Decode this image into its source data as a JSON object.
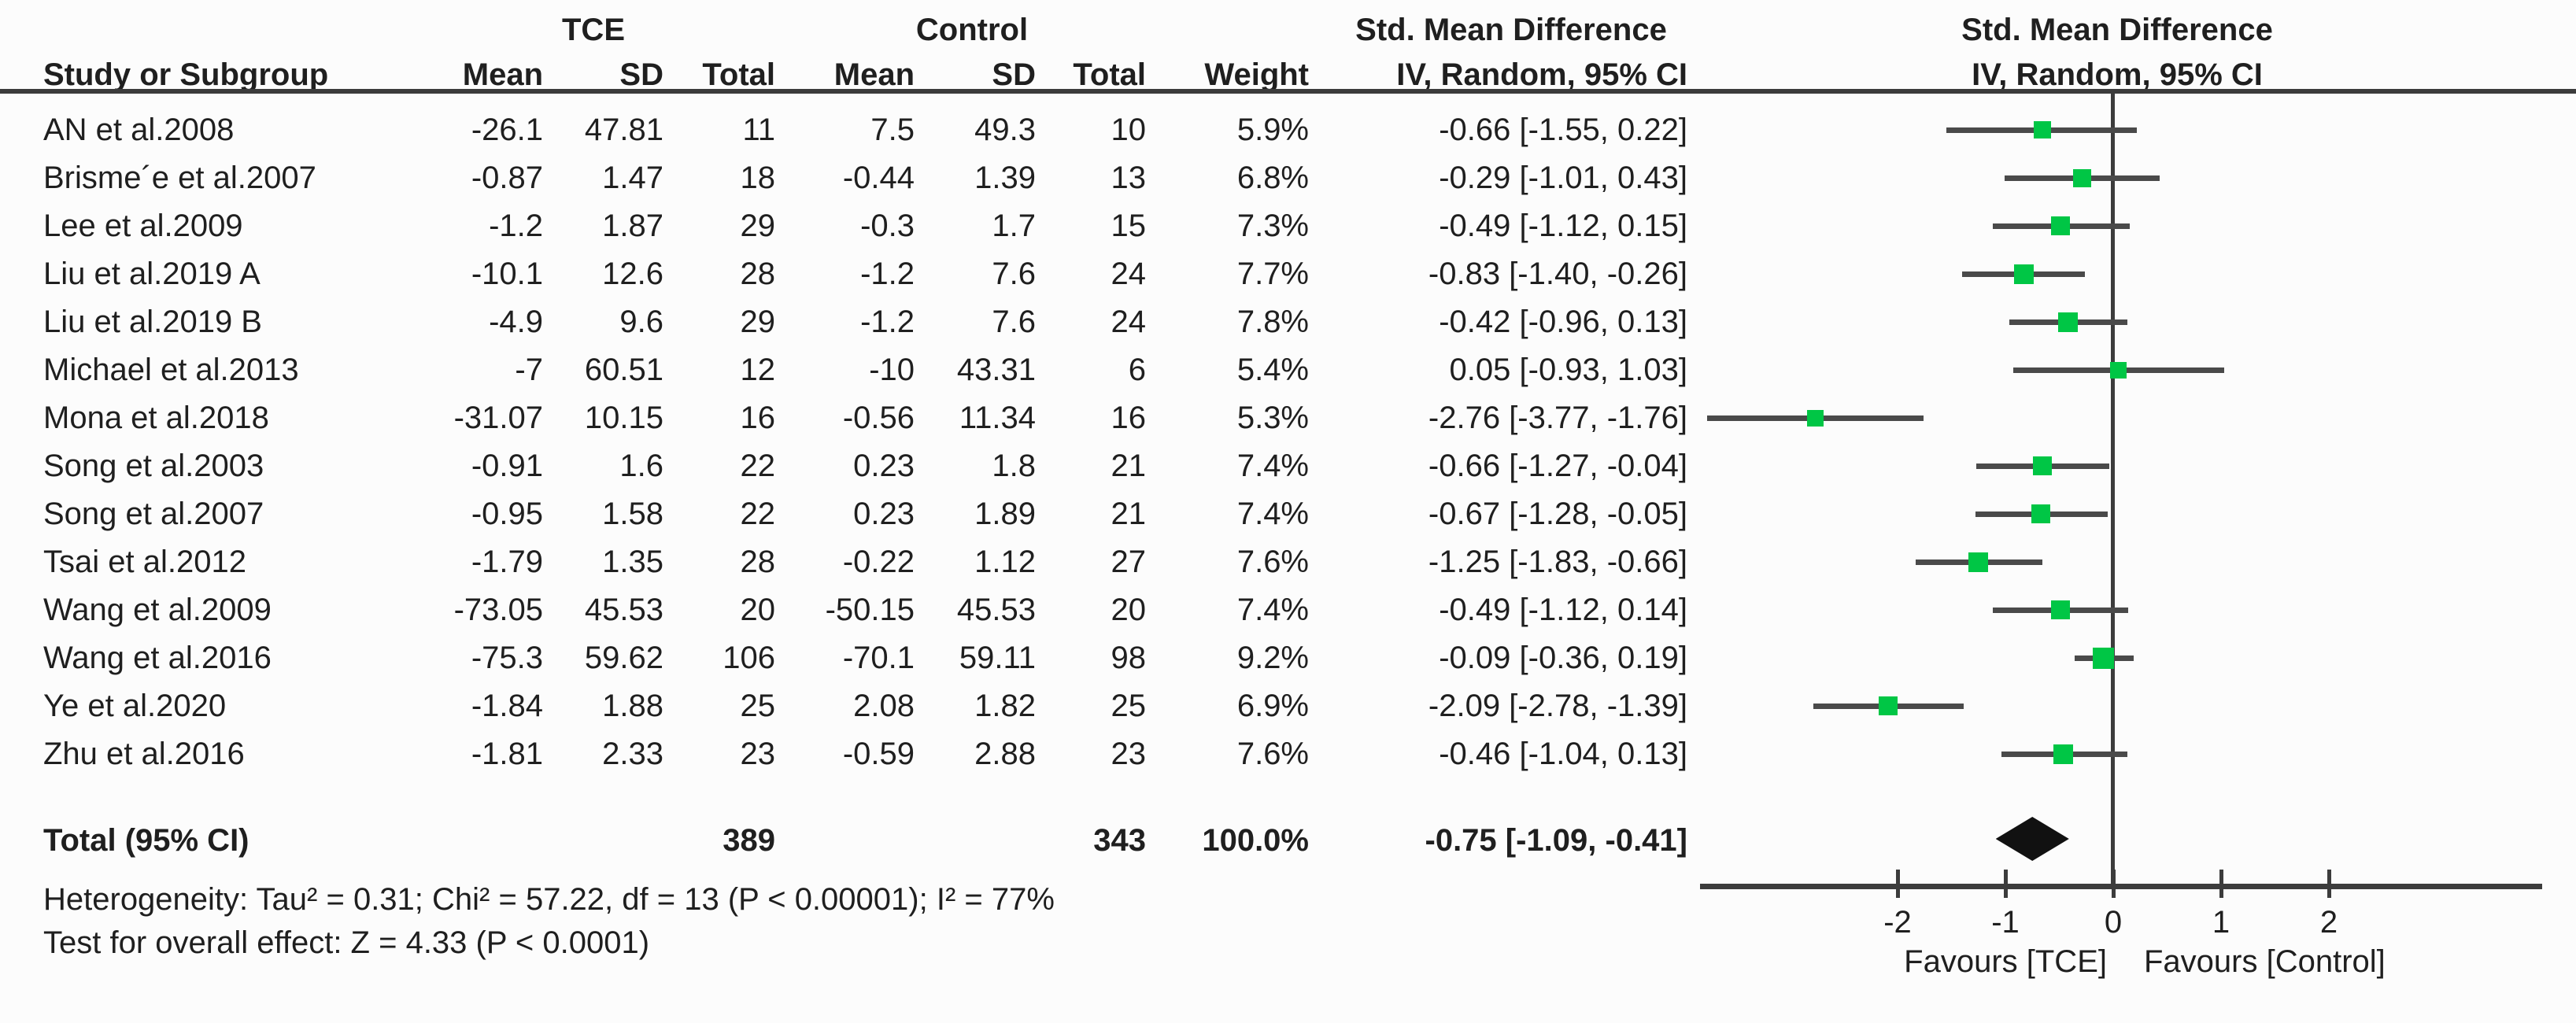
{
  "header": {
    "group_tce": "TCE",
    "group_control": "Control",
    "effect_text_col": "Std. Mean Difference",
    "effect_plot_col": "Std. Mean Difference",
    "col_study": "Study or Subgroup",
    "col_mean_tce": "Mean",
    "col_sd_tce": "SD",
    "col_total_tce": "Total",
    "col_mean_ctrl": "Mean",
    "col_sd_ctrl": "SD",
    "col_total_ctrl": "Total",
    "col_weight": "Weight",
    "col_method_text": "IV, Random, 95% CI",
    "col_method_plot": "IV, Random, 95% CI"
  },
  "colors": {
    "marker_green": "#00C645",
    "ci_line_gray": "#4a4a4a",
    "axis_gray": "#3c3c3c",
    "diamond_black": "#111111"
  },
  "chart_data": {
    "type": "forest",
    "effect_measure": "Std. Mean Difference",
    "method": "IV, Random, 95% CI",
    "axis_min": -3.83,
    "axis_max": 3.98,
    "x_ticks": [
      -2,
      -1,
      0,
      1,
      2
    ],
    "favours_left": "Favours [TCE]",
    "favours_right": "Favours [Control]",
    "studies": [
      {
        "name": "AN et al.2008",
        "mean1": "-26.1",
        "sd1": "47.81",
        "n1": "11",
        "mean2": "7.5",
        "sd2": "49.3",
        "n2": "10",
        "weight": "5.9%",
        "ci": "-0.66 [-1.55, 0.22]",
        "est": -0.66,
        "lo": -1.55,
        "hi": 0.22
      },
      {
        "name": "Brisme´e et al.2007",
        "mean1": "-0.87",
        "sd1": "1.47",
        "n1": "18",
        "mean2": "-0.44",
        "sd2": "1.39",
        "n2": "13",
        "weight": "6.8%",
        "ci": "-0.29 [-1.01, 0.43]",
        "est": -0.29,
        "lo": -1.01,
        "hi": 0.43
      },
      {
        "name": "Lee et al.2009",
        "mean1": "-1.2",
        "sd1": "1.87",
        "n1": "29",
        "mean2": "-0.3",
        "sd2": "1.7",
        "n2": "15",
        "weight": "7.3%",
        "ci": "-0.49 [-1.12, 0.15]",
        "est": -0.49,
        "lo": -1.12,
        "hi": 0.15
      },
      {
        "name": "Liu et al.2019 A",
        "mean1": "-10.1",
        "sd1": "12.6",
        "n1": "28",
        "mean2": "-1.2",
        "sd2": "7.6",
        "n2": "24",
        "weight": "7.7%",
        "ci": "-0.83 [-1.40, -0.26]",
        "est": -0.83,
        "lo": -1.4,
        "hi": -0.26
      },
      {
        "name": "Liu et al.2019 B",
        "mean1": "-4.9",
        "sd1": "9.6",
        "n1": "29",
        "mean2": "-1.2",
        "sd2": "7.6",
        "n2": "24",
        "weight": "7.8%",
        "ci": "-0.42 [-0.96, 0.13]",
        "est": -0.42,
        "lo": -0.96,
        "hi": 0.13
      },
      {
        "name": "Michael et al.2013",
        "mean1": "-7",
        "sd1": "60.51",
        "n1": "12",
        "mean2": "-10",
        "sd2": "43.31",
        "n2": "6",
        "weight": "5.4%",
        "ci": "0.05 [-0.93, 1.03]",
        "est": 0.05,
        "lo": -0.93,
        "hi": 1.03
      },
      {
        "name": "Mona et al.2018",
        "mean1": "-31.07",
        "sd1": "10.15",
        "n1": "16",
        "mean2": "-0.56",
        "sd2": "11.34",
        "n2": "16",
        "weight": "5.3%",
        "ci": "-2.76 [-3.77, -1.76]",
        "est": -2.76,
        "lo": -3.77,
        "hi": -1.76
      },
      {
        "name": "Song et al.2003",
        "mean1": "-0.91",
        "sd1": "1.6",
        "n1": "22",
        "mean2": "0.23",
        "sd2": "1.8",
        "n2": "21",
        "weight": "7.4%",
        "ci": "-0.66 [-1.27, -0.04]",
        "est": -0.66,
        "lo": -1.27,
        "hi": -0.04
      },
      {
        "name": "Song et al.2007",
        "mean1": "-0.95",
        "sd1": "1.58",
        "n1": "22",
        "mean2": "0.23",
        "sd2": "1.89",
        "n2": "21",
        "weight": "7.4%",
        "ci": "-0.67 [-1.28, -0.05]",
        "est": -0.67,
        "lo": -1.28,
        "hi": -0.05
      },
      {
        "name": "Tsai et al.2012",
        "mean1": "-1.79",
        "sd1": "1.35",
        "n1": "28",
        "mean2": "-0.22",
        "sd2": "1.12",
        "n2": "27",
        "weight": "7.6%",
        "ci": "-1.25 [-1.83, -0.66]",
        "est": -1.25,
        "lo": -1.83,
        "hi": -0.66
      },
      {
        "name": "Wang et al.2009",
        "mean1": "-73.05",
        "sd1": "45.53",
        "n1": "20",
        "mean2": "-50.15",
        "sd2": "45.53",
        "n2": "20",
        "weight": "7.4%",
        "ci": "-0.49 [-1.12, 0.14]",
        "est": -0.49,
        "lo": -1.12,
        "hi": 0.14
      },
      {
        "name": "Wang et al.2016",
        "mean1": "-75.3",
        "sd1": "59.62",
        "n1": "106",
        "mean2": "-70.1",
        "sd2": "59.11",
        "n2": "98",
        "weight": "9.2%",
        "ci": "-0.09 [-0.36, 0.19]",
        "est": -0.09,
        "lo": -0.36,
        "hi": 0.19
      },
      {
        "name": "Ye et al.2020",
        "mean1": "-1.84",
        "sd1": "1.88",
        "n1": "25",
        "mean2": "2.08",
        "sd2": "1.82",
        "n2": "25",
        "weight": "6.9%",
        "ci": "-2.09 [-2.78, -1.39]",
        "est": -2.09,
        "lo": -2.78,
        "hi": -1.39
      },
      {
        "name": "Zhu et al.2016",
        "mean1": "-1.81",
        "sd1": "2.33",
        "n1": "23",
        "mean2": "-0.59",
        "sd2": "2.88",
        "n2": "23",
        "weight": "7.6%",
        "ci": "-0.46 [-1.04, 0.13]",
        "est": -0.46,
        "lo": -1.04,
        "hi": 0.13
      }
    ],
    "total": {
      "label": "Total (95% CI)",
      "n1": "389",
      "n2": "343",
      "weight": "100.0%",
      "ci": "-0.75 [-1.09, -0.41]",
      "est": -0.75,
      "lo": -1.09,
      "hi": -0.41
    },
    "footer_heterogeneity": "Heterogeneity: Tau² = 0.31; Chi² = 57.22, df = 13 (P < 0.00001); I² = 77%",
    "footer_overall_effect": "Test for overall effect: Z = 4.33 (P < 0.0001)"
  }
}
